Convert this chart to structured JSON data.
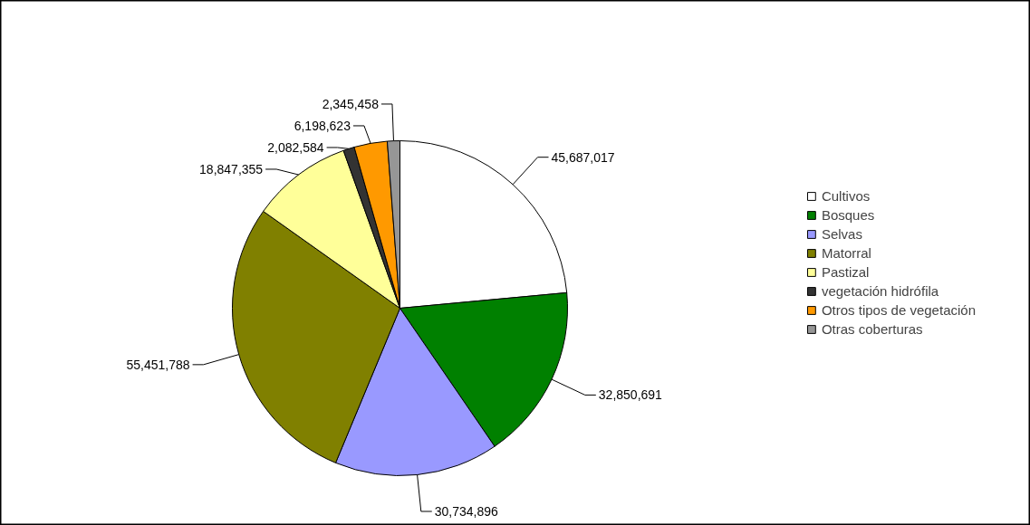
{
  "chart_data": {
    "type": "pie",
    "categories": [
      "Cultivos",
      "Bosques",
      "Selvas",
      "Matorral",
      "Pastizal",
      "vegetación hidrófila",
      "Otros tipos de vegetación",
      "Otras coberturas"
    ],
    "values": [
      45687017,
      32850691,
      30734896,
      55451788,
      18847355,
      2082584,
      6198623,
      2345458
    ],
    "colors": [
      "#ffffff",
      "#008000",
      "#9999ff",
      "#808000",
      "#ffff99",
      "#333333",
      "#ff9900",
      "#969696"
    ],
    "value_labels": [
      "45,687,017",
      "32,850,691",
      "30,734,896",
      "55,451,788",
      "18,847,355",
      "2,082,584",
      "6,198,623",
      "2,345,458"
    ],
    "legend": "right"
  }
}
